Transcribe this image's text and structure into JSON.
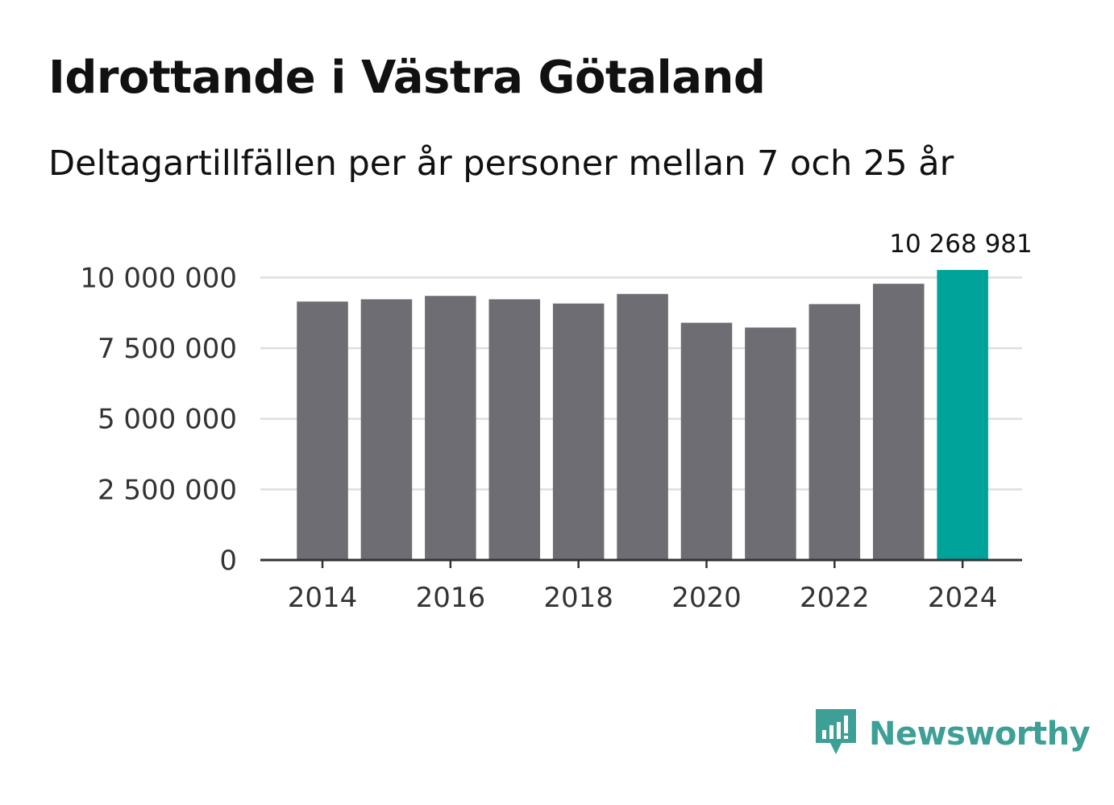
{
  "header": {
    "title": "Idrottande i Västra Götaland",
    "subtitle": "Deltagartillfällen per år personer mellan 7 och 25 år"
  },
  "brand": {
    "name": "Newsworthy",
    "icon": "newsworthy-logo-icon",
    "color": "#3d9f95"
  },
  "colors": {
    "bar": "#6e6d74",
    "highlight": "#00a39a",
    "grid": "#dedede",
    "axis": "#333333"
  },
  "chart_data": {
    "type": "bar",
    "title": "Idrottande i Västra Götaland",
    "subtitle": "Deltagartillfällen per år personer mellan 7 och 25 år",
    "xlabel": "",
    "ylabel": "",
    "categories": [
      "2014",
      "2015",
      "2016",
      "2017",
      "2018",
      "2019",
      "2020",
      "2021",
      "2022",
      "2023",
      "2024"
    ],
    "values": [
      9150000,
      9230000,
      9350000,
      9230000,
      9080000,
      9420000,
      8400000,
      8230000,
      9060000,
      9780000,
      10268981
    ],
    "highlight_index": 10,
    "value_labels": [
      {
        "index": 10,
        "text": "10 268 981"
      }
    ],
    "ylim": [
      0,
      10268981
    ],
    "yticks": [
      0,
      2500000,
      5000000,
      7500000,
      10000000
    ],
    "ytick_labels": [
      "0",
      "2 500 000",
      "5 000 000",
      "7 500 000",
      "10 000 000"
    ],
    "xticks": [
      "2014",
      "2016",
      "2018",
      "2020",
      "2022",
      "2024"
    ],
    "grid": true
  }
}
